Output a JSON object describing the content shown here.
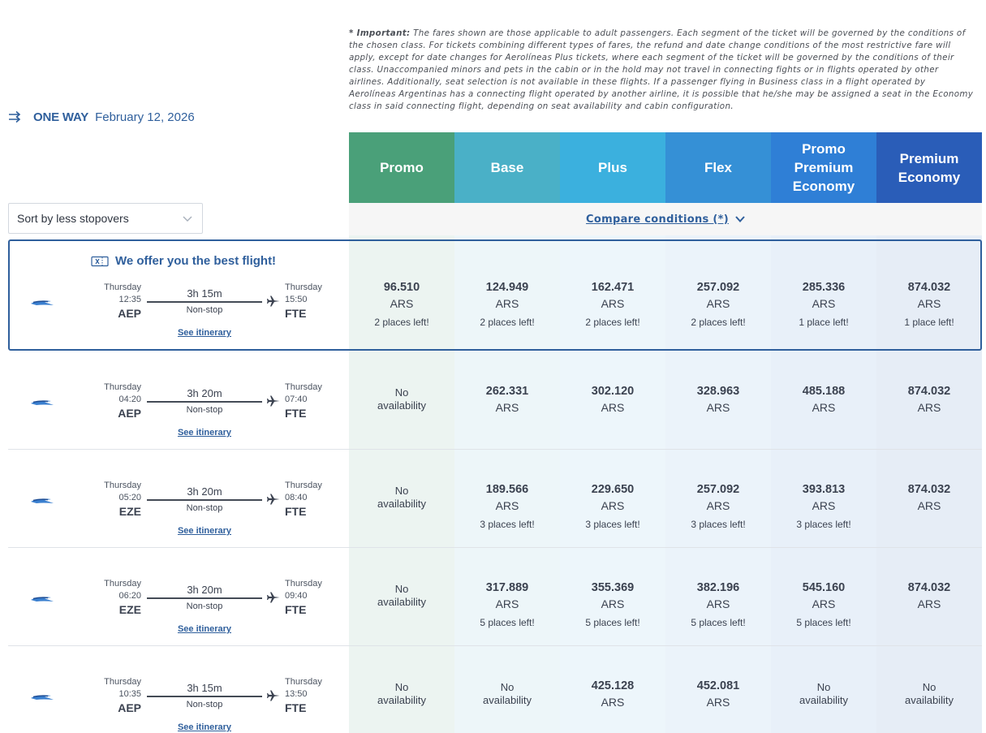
{
  "notice": {
    "label": "* Important:",
    "text": "The fares shown are those applicable to adult passengers. Each segment of the ticket will be governed by the conditions of the chosen class. For tickets combining different types of fares, the refund and date change conditions of the most restrictive fare will apply, except for date changes for Aerolíneas Plus tickets, where each segment of the ticket will be governed by the conditions of their class. Unaccompanied minors and pets in the cabin or in the hold may not travel in connecting fights or in flights operated by other airlines. Additionally, seat selection is not available in these flights. If a passenger flying in Business class in a flight operated by Aerolíneas Argentinas has a connecting flight operated by another airline, it is possible that he/she may be assigned a seat in the Economy class in said connecting flight, depending on seat availability and cabin configuration."
  },
  "trip": {
    "type": "ONE WAY",
    "date": "February 12, 2026",
    "icon": "one-way-arrows-icon"
  },
  "sort": {
    "label": "Sort by less stopovers"
  },
  "compare": {
    "label": "Compare conditions (*)"
  },
  "best_label": "We offer you the best flight!",
  "fares": [
    {
      "name": "Promo",
      "color": "#4aa079",
      "tint": "#ecf4f1"
    },
    {
      "name": "Base",
      "color": "#4ab0c7",
      "tint": "#edf6f9"
    },
    {
      "name": "Plus",
      "color": "#3bb0de",
      "tint": "#edf6fb"
    },
    {
      "name": "Flex",
      "color": "#3590d6",
      "tint": "#ebf3fa"
    },
    {
      "name": "Promo Premium Economy",
      "color": "#2f7fd6",
      "tint": "#e8f0f9"
    },
    {
      "name": "Premium Economy",
      "color": "#2a5db8",
      "tint": "#e6edf6"
    }
  ],
  "flights": [
    {
      "dep_day": "Thursday",
      "dep_time": "12:35",
      "dep_code": "AEP",
      "arr_day": "Thursday",
      "arr_time": "15:50",
      "arr_code": "FTE",
      "duration": "3h 15m",
      "stops": "Non-stop",
      "itinerary": "See itinerary",
      "prices": [
        {
          "price": "96.510",
          "currency": "ARS",
          "seats": "2 places left!"
        },
        {
          "price": "124.949",
          "currency": "ARS",
          "seats": "2 places left!"
        },
        {
          "price": "162.471",
          "currency": "ARS",
          "seats": "2 places left!"
        },
        {
          "price": "257.092",
          "currency": "ARS",
          "seats": "2 places left!"
        },
        {
          "price": "285.336",
          "currency": "ARS",
          "seats": "1 place left!"
        },
        {
          "price": "874.032",
          "currency": "ARS",
          "seats": "1 place left!"
        }
      ]
    },
    {
      "dep_day": "Thursday",
      "dep_time": "04:20",
      "dep_code": "AEP",
      "arr_day": "Thursday",
      "arr_time": "07:40",
      "arr_code": "FTE",
      "duration": "3h 20m",
      "stops": "Non-stop",
      "itinerary": "See itinerary",
      "prices": [
        {
          "na": "No availability"
        },
        {
          "price": "262.331",
          "currency": "ARS"
        },
        {
          "price": "302.120",
          "currency": "ARS"
        },
        {
          "price": "328.963",
          "currency": "ARS"
        },
        {
          "price": "485.188",
          "currency": "ARS"
        },
        {
          "price": "874.032",
          "currency": "ARS"
        }
      ]
    },
    {
      "dep_day": "Thursday",
      "dep_time": "05:20",
      "dep_code": "EZE",
      "arr_day": "Thursday",
      "arr_time": "08:40",
      "arr_code": "FTE",
      "duration": "3h 20m",
      "stops": "Non-stop",
      "itinerary": "See itinerary",
      "prices": [
        {
          "na": "No availability"
        },
        {
          "price": "189.566",
          "currency": "ARS",
          "seats": "3 places left!"
        },
        {
          "price": "229.650",
          "currency": "ARS",
          "seats": "3 places left!"
        },
        {
          "price": "257.092",
          "currency": "ARS",
          "seats": "3 places left!"
        },
        {
          "price": "393.813",
          "currency": "ARS",
          "seats": "3 places left!"
        },
        {
          "price": "874.032",
          "currency": "ARS"
        }
      ]
    },
    {
      "dep_day": "Thursday",
      "dep_time": "06:20",
      "dep_code": "EZE",
      "arr_day": "Thursday",
      "arr_time": "09:40",
      "arr_code": "FTE",
      "duration": "3h 20m",
      "stops": "Non-stop",
      "itinerary": "See itinerary",
      "prices": [
        {
          "na": "No availability"
        },
        {
          "price": "317.889",
          "currency": "ARS",
          "seats": "5 places left!"
        },
        {
          "price": "355.369",
          "currency": "ARS",
          "seats": "5 places left!"
        },
        {
          "price": "382.196",
          "currency": "ARS",
          "seats": "5 places left!"
        },
        {
          "price": "545.160",
          "currency": "ARS",
          "seats": "5 places left!"
        },
        {
          "price": "874.032",
          "currency": "ARS"
        }
      ]
    },
    {
      "dep_day": "Thursday",
      "dep_time": "10:35",
      "dep_code": "AEP",
      "arr_day": "Thursday",
      "arr_time": "13:50",
      "arr_code": "FTE",
      "duration": "3h 15m",
      "stops": "Non-stop",
      "itinerary": "See itinerary",
      "prices": [
        {
          "na": "No availability"
        },
        {
          "na": "No availability"
        },
        {
          "price": "425.128",
          "currency": "ARS"
        },
        {
          "price": "452.081",
          "currency": "ARS"
        },
        {
          "na": "No availability"
        },
        {
          "na": "No availability"
        }
      ]
    }
  ]
}
